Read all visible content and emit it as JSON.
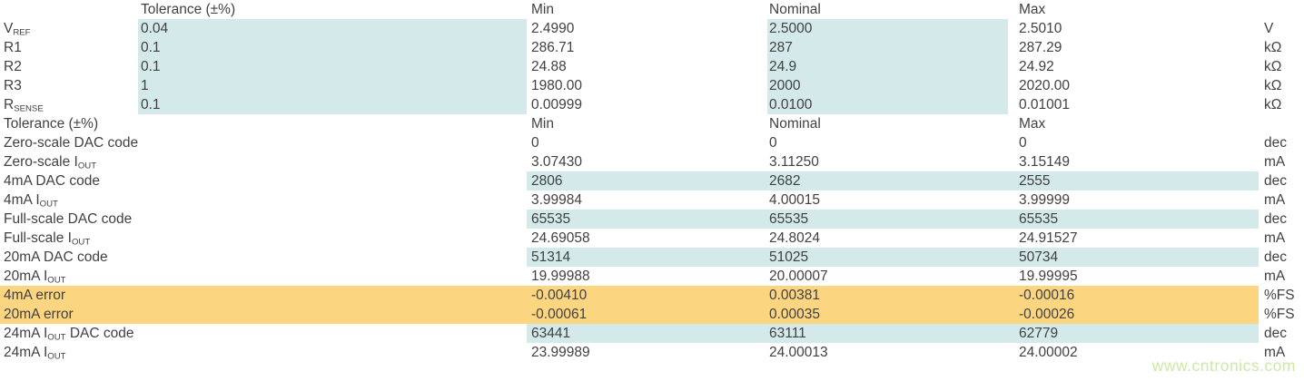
{
  "colors": {
    "highlight_blue": "#d3e9ea",
    "highlight_orange": "#fcd581",
    "text": "#414141",
    "watermark_green": "#cde9a2"
  },
  "watermark": "www.cntronics.com",
  "units_seen": [
    "V",
    "kΩ",
    "dec",
    "mA",
    "%FS"
  ],
  "table": {
    "sections": [
      {
        "header": {
          "label": "",
          "tolerance": "Tolerance (±%)",
          "min": "Min",
          "nominal": "Nominal",
          "max": "Max",
          "unit": ""
        },
        "rows": [
          {
            "label": "V~REF~",
            "tolerance": "0.04",
            "min": "2.4990",
            "nominal": "2.5000",
            "max": "2.5010",
            "unit": "V",
            "highlight": "tol-nom"
          },
          {
            "label": "R1",
            "tolerance": "0.1",
            "min": "286.71",
            "nominal": "287",
            "max": "287.29",
            "unit": "kΩ",
            "highlight": "tol-nom"
          },
          {
            "label": "R2",
            "tolerance": "0.1",
            "min": "24.88",
            "nominal": "24.9",
            "max": "24.92",
            "unit": "kΩ",
            "highlight": "tol-nom"
          },
          {
            "label": "R3",
            "tolerance": "1",
            "min": "1980.00",
            "nominal": "2000",
            "max": "2020.00",
            "unit": "kΩ",
            "highlight": "tol-nom"
          },
          {
            "label": "R~SENSE~",
            "tolerance": "0.1",
            "min": "0.00999",
            "nominal": "0.0100",
            "max": "0.01001",
            "unit": "kΩ",
            "highlight": "tol-nom"
          }
        ]
      },
      {
        "header": {
          "label": "Tolerance (±%)",
          "tolerance": "",
          "min": "Min",
          "nominal": "Nominal",
          "max": "Max",
          "unit": ""
        },
        "rows": [
          {
            "label": "Zero-scale DAC code",
            "tolerance": "",
            "min": "0",
            "nominal": "0",
            "max": "0",
            "unit": "dec",
            "highlight": "none"
          },
          {
            "label": "Zero-scale I~OUT~",
            "tolerance": "",
            "min": "3.07430",
            "nominal": "3.11250",
            "max": "3.15149",
            "unit": "mA",
            "highlight": "none"
          },
          {
            "label": "4mA DAC code",
            "tolerance": "",
            "min": "2806",
            "nominal": "2682",
            "max": "2555",
            "unit": "dec",
            "highlight": "values"
          },
          {
            "label": "4mA I~OUT~",
            "tolerance": "",
            "min": "3.99984",
            "nominal": "4.00015",
            "max": "3.99999",
            "unit": "mA",
            "highlight": "none"
          },
          {
            "label": "Full-scale DAC code",
            "tolerance": "",
            "min": "65535",
            "nominal": "65535",
            "max": "65535",
            "unit": "dec",
            "highlight": "values"
          },
          {
            "label": "Full-scale I~OUT~",
            "tolerance": "",
            "min": "24.69058",
            "nominal": "24.8024",
            "max": "24.91527",
            "unit": "mA",
            "highlight": "none"
          },
          {
            "label": "20mA DAC code",
            "tolerance": "",
            "min": "51314",
            "nominal": "51025",
            "max": "50734",
            "unit": "dec",
            "highlight": "values"
          },
          {
            "label": "20mA I~OUT~",
            "tolerance": "",
            "min": "19.99988",
            "nominal": "20.00007",
            "max": "19.99995",
            "unit": "mA",
            "highlight": "none"
          },
          {
            "label": "4mA error",
            "tolerance": "",
            "min": "-0.00410",
            "nominal": "0.00381",
            "max": "-0.00016",
            "unit": "%FS",
            "highlight": "row"
          },
          {
            "label": "20mA error",
            "tolerance": "",
            "min": "-0.00061",
            "nominal": "0.00035",
            "max": "-0.00026",
            "unit": "%FS",
            "highlight": "row"
          },
          {
            "label": "24mA I~OUT~ DAC code",
            "tolerance": "",
            "min": "63441",
            "nominal": "63111",
            "max": "62779",
            "unit": "dec",
            "highlight": "values"
          },
          {
            "label": "24mA I~OUT~",
            "tolerance": "",
            "min": "23.99989",
            "nominal": "24.00013",
            "max": "24.00002",
            "unit": "mA",
            "highlight": "none"
          }
        ]
      }
    ]
  }
}
